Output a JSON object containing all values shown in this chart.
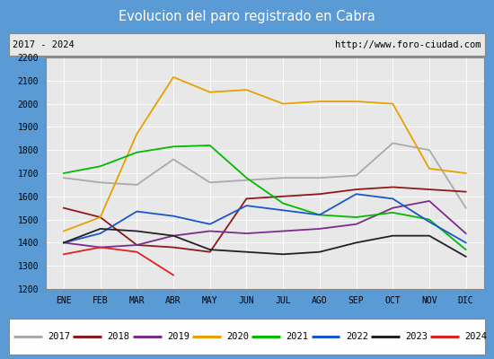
{
  "title": "Evolucion del paro registrado en Cabra",
  "subtitle_left": "2017 - 2024",
  "subtitle_right": "http://www.foro-ciudad.com",
  "title_bg_color": "#5b9bd5",
  "title_text_color": "white",
  "months": [
    "ENE",
    "FEB",
    "MAR",
    "ABR",
    "MAY",
    "JUN",
    "JUL",
    "AGO",
    "SEP",
    "OCT",
    "NOV",
    "DIC"
  ],
  "ylim": [
    1200,
    2200
  ],
  "yticks": [
    1200,
    1300,
    1400,
    1500,
    1600,
    1700,
    1800,
    1900,
    2000,
    2100,
    2200
  ],
  "series": {
    "2017": {
      "color": "#aaaaaa",
      "data": [
        1680,
        1660,
        1650,
        1760,
        1660,
        1670,
        1680,
        1680,
        1690,
        1830,
        1800,
        1550
      ]
    },
    "2018": {
      "color": "#8b1a1a",
      "data": [
        1550,
        1510,
        1390,
        1380,
        1360,
        1590,
        1600,
        1610,
        1630,
        1640,
        1630,
        1620
      ]
    },
    "2019": {
      "color": "#7b2d8b",
      "data": [
        1400,
        1380,
        1390,
        1430,
        1450,
        1440,
        1450,
        1460,
        1480,
        1550,
        1580,
        1440
      ]
    },
    "2020": {
      "color": "#e8a000",
      "data": [
        1450,
        1510,
        1870,
        2115,
        2050,
        2060,
        2000,
        2010,
        2010,
        2000,
        1720,
        1700
      ]
    },
    "2021": {
      "color": "#00bb00",
      "data": [
        1700,
        1730,
        1790,
        1815,
        1820,
        1680,
        1570,
        1520,
        1510,
        1530,
        1500,
        1370
      ]
    },
    "2022": {
      "color": "#1a56cc",
      "data": [
        1400,
        1440,
        1535,
        1515,
        1480,
        1560,
        1540,
        1520,
        1610,
        1590,
        1490,
        1400
      ]
    },
    "2023": {
      "color": "#222222",
      "data": [
        1400,
        1460,
        1450,
        1430,
        1370,
        1360,
        1350,
        1360,
        1400,
        1430,
        1430,
        1340
      ]
    },
    "2024": {
      "color": "#dd2222",
      "data": [
        1350,
        1380,
        1360,
        1260,
        null,
        null,
        null,
        null,
        null,
        null,
        null,
        null
      ]
    }
  },
  "legend_order": [
    "2017",
    "2018",
    "2019",
    "2020",
    "2021",
    "2022",
    "2023",
    "2024"
  ]
}
